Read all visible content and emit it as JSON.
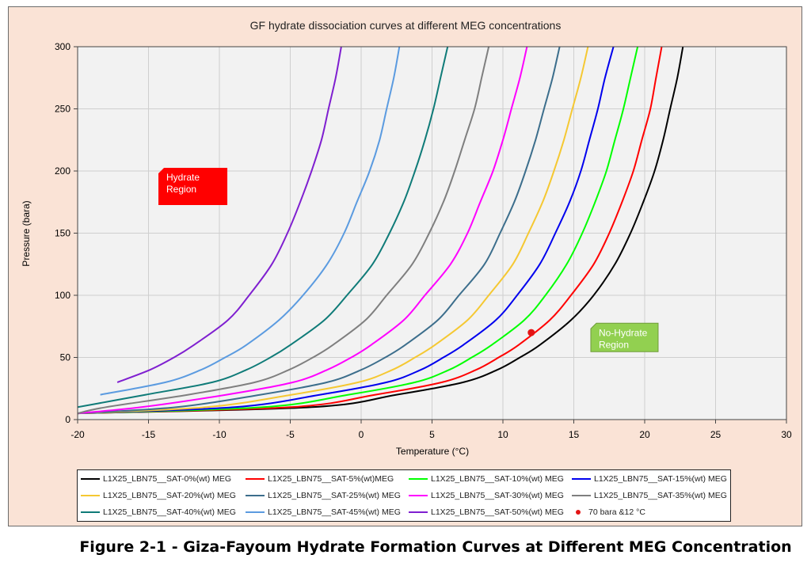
{
  "caption": "Figure 2-1 - Giza-Fayoum Hydrate Formation Curves at Different MEG Concentration",
  "chart_data": {
    "type": "line",
    "title": "GF hydrate dissociation curves at different MEG concentrations",
    "xlabel": "Temperature (°C)",
    "ylabel": "Pressure (bara)",
    "xlim": [
      -20,
      30
    ],
    "ylim": [
      0,
      300
    ],
    "xticks": [
      -20,
      -15,
      -10,
      -5,
      0,
      5,
      10,
      15,
      20,
      25,
      30
    ],
    "yticks": [
      0,
      50,
      100,
      150,
      200,
      250,
      300
    ],
    "grid": true,
    "legend_position": "bottom",
    "y_values": [
      5,
      10,
      20,
      30,
      40,
      50,
      60,
      80,
      100,
      125,
      150,
      175,
      200,
      225,
      250,
      275,
      300
    ],
    "series": [
      {
        "name": "L1X25_LBN75__SAT-0%(wt) MEG",
        "color": "#000000",
        "x": [
          -20,
          -3.5,
          2.5,
          7.2,
          9.6,
          11.2,
          12.6,
          14.8,
          16.4,
          17.9,
          19.0,
          19.9,
          20.7,
          21.3,
          21.8,
          22.3,
          22.7
        ]
      },
      {
        "name": "L1X25_LBN75__SAT-5%(wt)MEG",
        "color": "#ff0000",
        "x": [
          -20,
          -5.0,
          1.0,
          5.7,
          8.1,
          9.7,
          11.1,
          13.3,
          14.8,
          16.4,
          17.5,
          18.4,
          19.2,
          19.8,
          20.4,
          20.8,
          21.2
        ]
      },
      {
        "name": "L1X25_LBN75__SAT-10%(wt) MEG",
        "color": "#00ff00",
        "x": [
          -20,
          -6.9,
          -0.9,
          3.8,
          6.2,
          7.8,
          9.2,
          11.5,
          13.0,
          14.5,
          15.6,
          16.5,
          17.3,
          17.9,
          18.5,
          19.0,
          19.5
        ]
      },
      {
        "name": "L1X25_LBN75__SAT-15%(wt) MEG",
        "color": "#0000ee",
        "x": [
          -20,
          -8.9,
          -2.9,
          1.8,
          4.2,
          5.8,
          7.2,
          9.5,
          11.0,
          12.6,
          13.7,
          14.7,
          15.5,
          16.1,
          16.7,
          17.2,
          17.8
        ]
      },
      {
        "name": "L1X25_LBN75__SAT-20%(wt) MEG",
        "color": "#f5c832",
        "x": [
          -20,
          -10.9,
          -4.9,
          -0.2,
          2.2,
          3.8,
          5.2,
          7.5,
          9.0,
          10.7,
          11.8,
          12.8,
          13.6,
          14.3,
          14.9,
          15.5,
          16.0
        ]
      },
      {
        "name": "L1X25_LBN75__SAT-25%(wt) MEG",
        "color": "#3c6e8c",
        "x": [
          -20,
          -13.0,
          -7.1,
          -2.4,
          0.0,
          1.7,
          3.1,
          5.4,
          6.9,
          8.7,
          9.8,
          10.8,
          11.6,
          12.3,
          12.9,
          13.5,
          14.0
        ]
      },
      {
        "name": "L1X25_LBN75__SAT-30%(wt) MEG",
        "color": "#ff00ff",
        "x": [
          -20,
          -15.5,
          -9.5,
          -4.8,
          -2.4,
          -0.7,
          0.7,
          3.0,
          4.5,
          6.3,
          7.5,
          8.4,
          9.3,
          10.0,
          10.6,
          11.2,
          11.7
        ]
      },
      {
        "name": "L1X25_LBN75__SAT-35%(wt) MEG",
        "color": "#7f7f7f",
        "x": [
          -20,
          -18.0,
          -12.2,
          -7.5,
          -5.1,
          -3.4,
          -2.0,
          0.3,
          1.8,
          3.6,
          4.8,
          5.8,
          6.6,
          7.3,
          8.0,
          8.5,
          9.0
        ]
      },
      {
        "name": "L1X25_LBN75__SAT-40%(wt) MEG",
        "color": "#0f7b78",
        "x": [
          null,
          -20,
          -15.2,
          -10.5,
          -8.1,
          -6.4,
          -5.0,
          -2.6,
          -1.0,
          0.8,
          2.0,
          3.0,
          3.8,
          4.5,
          5.1,
          5.6,
          6.1
        ]
      },
      {
        "name": "L1X25_LBN75__SAT-45%(wt) MEG",
        "color": "#5b9be0",
        "x": [
          null,
          null,
          -18.4,
          -13.8,
          -11.3,
          -9.6,
          -8.1,
          -5.8,
          -4.1,
          -2.4,
          -1.2,
          -0.3,
          0.6,
          1.3,
          1.8,
          2.3,
          2.7
        ]
      },
      {
        "name": "L1X25_LBN75__SAT-50%(wt) MEG",
        "color": "#7f1fd0",
        "x": [
          null,
          null,
          null,
          -17.2,
          -14.9,
          -13.2,
          -11.8,
          -9.4,
          -7.9,
          -6.3,
          -5.2,
          -4.3,
          -3.5,
          -2.8,
          -2.3,
          -1.8,
          -1.4
        ]
      }
    ],
    "point": {
      "name": "70 bara &12 °C",
      "x": 12,
      "y": 70,
      "color": "#e31414"
    },
    "annotations": [
      {
        "text_lines": [
          "Hydrate",
          "Region"
        ],
        "fill": "#ff0000",
        "text_color": "#ffffff",
        "x": -14.3,
        "y": 200
      },
      {
        "text_lines": [
          "No-Hydrate",
          "Region"
        ],
        "fill": "#92d050",
        "text_color": "#ffffff",
        "x": 16.2,
        "y": 75
      }
    ]
  }
}
